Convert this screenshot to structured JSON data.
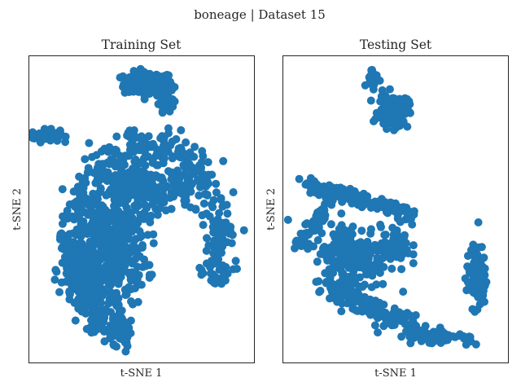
{
  "figure": {
    "title": "boneage | Dataset 15"
  },
  "colors": {
    "point": "#1f77b4",
    "frame": "#262626",
    "background": "#ffffff"
  },
  "chart_data": [
    {
      "type": "scatter",
      "title": "Training Set",
      "xlabel": "t-SNE 1",
      "ylabel": "t-SNE 2",
      "xlim": [
        0,
        100
      ],
      "ylim": [
        0,
        100
      ],
      "grid": false,
      "ticks": false,
      "clusters": [
        {
          "shape": "blob",
          "cx": 53,
          "cy": 91,
          "rx": 10,
          "ry": 3.5,
          "n": 150
        },
        {
          "shape": "blob",
          "cx": 61,
          "cy": 86,
          "rx": 3,
          "ry": 3.5,
          "n": 40
        },
        {
          "shape": "blob",
          "cx": 7,
          "cy": 74,
          "rx": 6,
          "ry": 1.8,
          "n": 60
        },
        {
          "shape": "ring",
          "cx": 52,
          "cy": 39,
          "rx": 33,
          "ry": 31,
          "thickness": 6,
          "start": -25,
          "end": 260,
          "n": 520
        },
        {
          "shape": "blob",
          "cx": 37,
          "cy": 38,
          "rx": 14,
          "ry": 18,
          "n": 380
        },
        {
          "shape": "blob",
          "cx": 52,
          "cy": 56,
          "rx": 18,
          "ry": 7,
          "n": 180
        },
        {
          "shape": "blob",
          "cx": 23,
          "cy": 30,
          "rx": 8,
          "ry": 9,
          "n": 140
        }
      ]
    },
    {
      "type": "scatter",
      "title": "Testing Set",
      "xlabel": "t-SNE 1",
      "ylabel": "t-SNE 2",
      "xlim": [
        0,
        100
      ],
      "ylim": [
        0,
        100
      ],
      "grid": false,
      "ticks": false,
      "clusters": [
        {
          "shape": "blob",
          "cx": 49,
          "cy": 82,
          "rx": 6,
          "ry": 5,
          "n": 110
        },
        {
          "shape": "blob",
          "cx": 40,
          "cy": 93,
          "rx": 2.5,
          "ry": 3,
          "n": 30
        },
        {
          "shape": "line",
          "x0": 10,
          "y0": 58,
          "x1": 58,
          "y1": 48,
          "width": 2.5,
          "n": 140
        },
        {
          "shape": "line",
          "x0": 20,
          "y0": 52,
          "x1": 6,
          "y1": 38,
          "width": 2.5,
          "n": 40
        },
        {
          "shape": "blob",
          "cx": 30,
          "cy": 35,
          "rx": 15,
          "ry": 10,
          "n": 220
        },
        {
          "shape": "line",
          "x0": 22,
          "y0": 24,
          "x1": 60,
          "y1": 10,
          "width": 4,
          "n": 160
        },
        {
          "shape": "line",
          "x0": 58,
          "y0": 9,
          "x1": 84,
          "y1": 8,
          "width": 2.5,
          "n": 60
        },
        {
          "shape": "blob",
          "cx": 86,
          "cy": 28,
          "rx": 4,
          "ry": 9,
          "n": 110
        },
        {
          "shape": "blob",
          "cx": 50,
          "cy": 38,
          "rx": 6,
          "ry": 6,
          "n": 60
        }
      ]
    }
  ]
}
